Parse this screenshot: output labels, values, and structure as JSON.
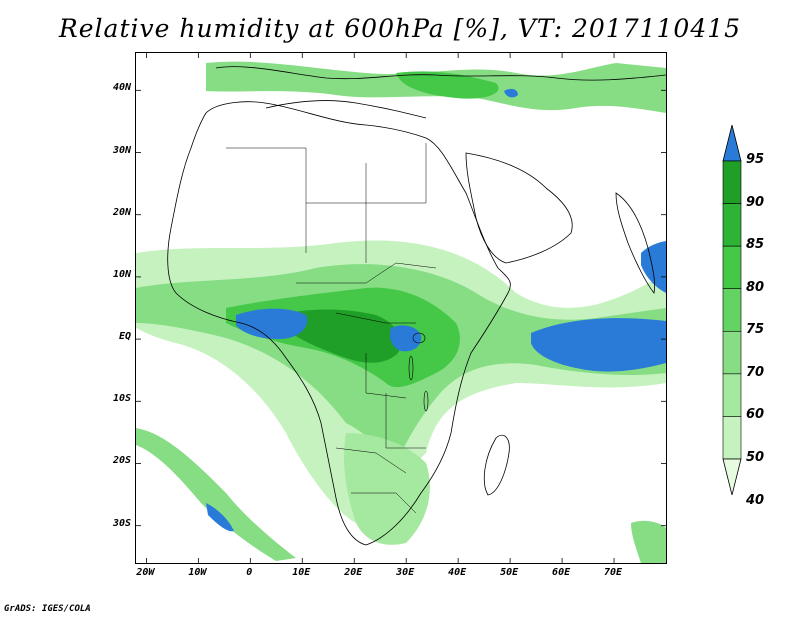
{
  "title": "Relative humidity at 600hPa [%], VT: 2017110415",
  "footer": "GrADS: IGES/COLA",
  "map": {
    "lon_range": [
      -22,
      80
    ],
    "lat_range": [
      -36,
      46
    ],
    "lat_ticks": [
      {
        "value": 40,
        "label": "40N"
      },
      {
        "value": 30,
        "label": "30N"
      },
      {
        "value": 20,
        "label": "20N"
      },
      {
        "value": 10,
        "label": "10N"
      },
      {
        "value": 0,
        "label": "EQ"
      },
      {
        "value": -10,
        "label": "10S"
      },
      {
        "value": -20,
        "label": "20S"
      },
      {
        "value": -30,
        "label": "30S"
      }
    ],
    "lon_ticks": [
      {
        "value": -20,
        "label": "20W"
      },
      {
        "value": -10,
        "label": "10W"
      },
      {
        "value": 0,
        "label": "0"
      },
      {
        "value": 10,
        "label": "10E"
      },
      {
        "value": 20,
        "label": "20E"
      },
      {
        "value": 30,
        "label": "30E"
      },
      {
        "value": 40,
        "label": "40E"
      },
      {
        "value": 50,
        "label": "50E"
      },
      {
        "value": 60,
        "label": "60E"
      },
      {
        "value": 70,
        "label": "70E"
      }
    ]
  },
  "colorbar": {
    "labels": [
      "95",
      "90",
      "85",
      "80",
      "75",
      "70",
      "60",
      "50",
      "40"
    ],
    "colors": [
      "#2a7bd8",
      "#1f9e28",
      "#2fb337",
      "#45c748",
      "#63d463",
      "#86dd84",
      "#a5e8a0",
      "#c6f2c0",
      "#e6fbe0"
    ]
  }
}
